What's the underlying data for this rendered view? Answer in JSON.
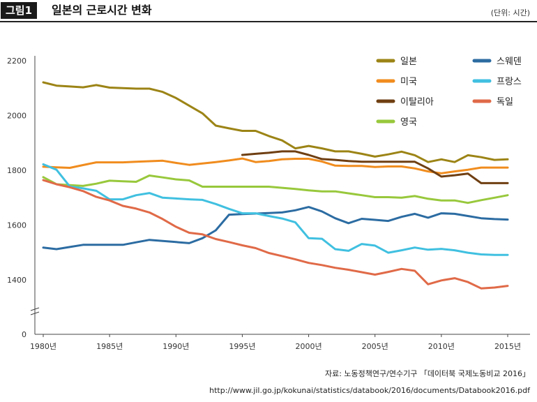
{
  "header": {
    "figure_label": "그림1",
    "title": "일본의 근로시간 변화",
    "unit": "(단위: 시간)"
  },
  "footer": {
    "source": "자료: 노동정책연구/연수기구 「데이터북 국제노동비교 2016」",
    "url": "http://www.jil.go.jp/kokunai/statistics/databook/2016/documents/Databook2016.pdf"
  },
  "chart_data": {
    "type": "line",
    "title": "일본의 근로시간 변화",
    "ylabel": "시간",
    "xlim": [
      1980,
      2015
    ],
    "ylim": [
      0,
      2200
    ],
    "yticks": [
      0,
      1400,
      1600,
      1800,
      2000,
      2200
    ],
    "xticks": [
      {
        "value": 1980,
        "label": "1980년"
      },
      {
        "value": 1985,
        "label": "1985년"
      },
      {
        "value": 1990,
        "label": "1990년"
      },
      {
        "value": 1995,
        "label": "1995년"
      },
      {
        "value": 2000,
        "label": "2000년"
      },
      {
        "value": 2005,
        "label": "2005년"
      },
      {
        "value": 2010,
        "label": "2010년"
      },
      {
        "value": 2015,
        "label": "2015년"
      }
    ],
    "axis_break": "y between 0 and 1400",
    "legend_position": "top-right",
    "series": [
      {
        "name": "일본",
        "color": "#9C8416",
        "x": [
          1980,
          1981,
          1982,
          1983,
          1984,
          1985,
          1986,
          1987,
          1988,
          1989,
          1990,
          1991,
          1992,
          1993,
          1994,
          1995,
          1996,
          1997,
          1998,
          1999,
          2000,
          2001,
          2002,
          2003,
          2004,
          2005,
          2006,
          2007,
          2008,
          2009,
          2010,
          2011,
          2012,
          2013,
          2014,
          2015
        ],
        "values": [
          2121,
          2109,
          2106,
          2103,
          2111,
          2102,
          2100,
          2098,
          2098,
          2086,
          2064,
          2036,
          2008,
          1963,
          1953,
          1944,
          1944,
          1925,
          1909,
          1880,
          1889,
          1880,
          1869,
          1869,
          1860,
          1850,
          1858,
          1868,
          1855,
          1830,
          1840,
          1830,
          1855,
          1848,
          1838,
          1840
        ]
      },
      {
        "name": "미국",
        "color": "#F08C1E",
        "x": [
          1980,
          1981,
          1982,
          1983,
          1984,
          1985,
          1986,
          1987,
          1988,
          1989,
          1990,
          1991,
          1992,
          1993,
          1994,
          1995,
          1996,
          1997,
          1998,
          1999,
          2000,
          2001,
          2002,
          2003,
          2004,
          2005,
          2006,
          2007,
          2008,
          2009,
          2010,
          2011,
          2012,
          2013,
          2014,
          2015
        ],
        "values": [
          1813,
          1811,
          1809,
          1819,
          1829,
          1829,
          1829,
          1831,
          1833,
          1835,
          1827,
          1820,
          1825,
          1830,
          1836,
          1843,
          1830,
          1834,
          1840,
          1842,
          1842,
          1832,
          1817,
          1816,
          1816,
          1812,
          1814,
          1814,
          1807,
          1796,
          1789,
          1796,
          1802,
          1810,
          1810,
          1810
        ]
      },
      {
        "name": "이탈리아",
        "color": "#6F3F12",
        "x": [
          1995,
          1996,
          1997,
          1998,
          1999,
          2000,
          2001,
          2002,
          2003,
          2004,
          2005,
          2006,
          2007,
          2008,
          2009,
          2010,
          2011,
          2012,
          2013,
          2014,
          2015
        ],
        "values": [
          1856,
          1860,
          1864,
          1869,
          1869,
          1856,
          1841,
          1838,
          1834,
          1831,
          1831,
          1831,
          1831,
          1831,
          1807,
          1777,
          1782,
          1788,
          1753,
          1753,
          1753
        ]
      },
      {
        "name": "영국",
        "color": "#98C83C",
        "x": [
          1980,
          1981,
          1982,
          1983,
          1984,
          1985,
          1986,
          1987,
          1988,
          1989,
          1990,
          1991,
          1992,
          1993,
          1994,
          1995,
          1996,
          1997,
          1998,
          1999,
          2000,
          2001,
          2002,
          2003,
          2004,
          2005,
          2006,
          2007,
          2008,
          2009,
          2010,
          2011,
          2012,
          2013,
          2014,
          2015
        ],
        "values": [
          1775,
          1749,
          1746,
          1743,
          1751,
          1762,
          1760,
          1758,
          1781,
          1774,
          1767,
          1763,
          1740,
          1740,
          1740,
          1740,
          1740,
          1740,
          1736,
          1732,
          1727,
          1723,
          1723,
          1716,
          1709,
          1702,
          1702,
          1700,
          1706,
          1696,
          1690,
          1690,
          1681,
          1691,
          1700,
          1709
        ]
      },
      {
        "name": "스웨덴",
        "color": "#2C6CA2",
        "x": [
          1980,
          1981,
          1982,
          1983,
          1984,
          1985,
          1986,
          1987,
          1988,
          1989,
          1990,
          1991,
          1992,
          1993,
          1994,
          1995,
          1996,
          1997,
          1998,
          1999,
          2000,
          2001,
          2002,
          2003,
          2004,
          2005,
          2006,
          2007,
          2008,
          2009,
          2010,
          2011,
          2012,
          2013,
          2014,
          2015
        ],
        "values": [
          1518,
          1512,
          1520,
          1528,
          1528,
          1528,
          1528,
          1537,
          1546,
          1542,
          1538,
          1534,
          1552,
          1581,
          1638,
          1640,
          1642,
          1644,
          1646,
          1654,
          1666,
          1650,
          1625,
          1607,
          1623,
          1619,
          1615,
          1630,
          1641,
          1627,
          1643,
          1641,
          1633,
          1625,
          1622,
          1620
        ]
      },
      {
        "name": "프랑스",
        "color": "#40C0E0",
        "x": [
          1980,
          1981,
          1982,
          1983,
          1984,
          1985,
          1986,
          1987,
          1988,
          1989,
          1990,
          1991,
          1992,
          1993,
          1994,
          1995,
          1996,
          1997,
          1998,
          1999,
          2000,
          2001,
          2002,
          2003,
          2004,
          2005,
          2006,
          2007,
          2008,
          2009,
          2010,
          2011,
          2012,
          2013,
          2014,
          2015
        ],
        "values": [
          1822,
          1802,
          1741,
          1734,
          1725,
          1694,
          1694,
          1709,
          1717,
          1700,
          1697,
          1694,
          1692,
          1677,
          1659,
          1643,
          1643,
          1633,
          1624,
          1610,
          1552,
          1550,
          1512,
          1506,
          1531,
          1525,
          1499,
          1508,
          1518,
          1510,
          1513,
          1508,
          1499,
          1493,
          1491,
          1491
        ]
      },
      {
        "name": "독일",
        "color": "#E06A48",
        "x": [
          1980,
          1981,
          1982,
          1983,
          1984,
          1985,
          1986,
          1987,
          1988,
          1989,
          1990,
          1991,
          1992,
          1993,
          1994,
          1995,
          1996,
          1997,
          1998,
          1999,
          2000,
          2001,
          2002,
          2003,
          2004,
          2005,
          2006,
          2007,
          2008,
          2009,
          2010,
          2011,
          2012,
          2013,
          2014,
          2015
        ],
        "values": [
          1764,
          1749,
          1738,
          1724,
          1703,
          1690,
          1670,
          1660,
          1646,
          1622,
          1594,
          1572,
          1566,
          1549,
          1538,
          1526,
          1516,
          1498,
          1487,
          1475,
          1462,
          1454,
          1444,
          1437,
          1428,
          1419,
          1429,
          1440,
          1433,
          1384,
          1398,
          1406,
          1392,
          1369,
          1372,
          1378
        ]
      }
    ]
  }
}
